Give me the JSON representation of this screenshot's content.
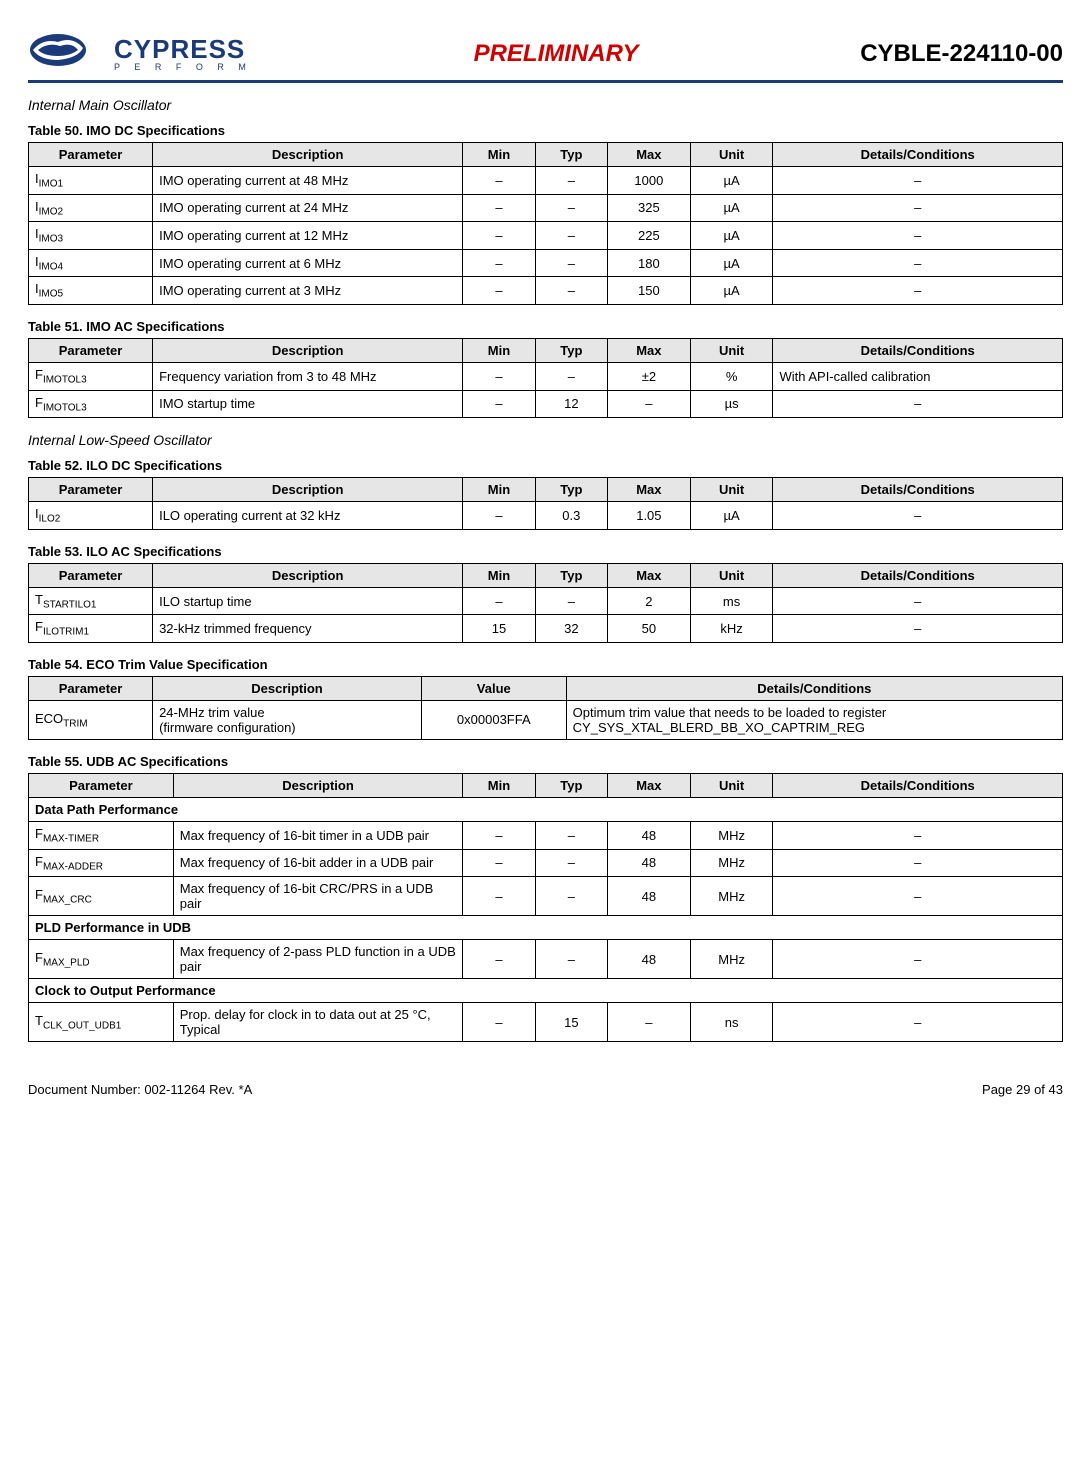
{
  "header": {
    "logo_main": "CYPRESS",
    "logo_sub": "P E R F O R M",
    "preliminary": "PRELIMINARY",
    "part_number": "CYBLE-224110-00"
  },
  "section1_heading": "Internal Main Oscillator",
  "table50": {
    "caption": "Table 50.  IMO DC Specifications",
    "headers": [
      "Parameter",
      "Description",
      "Min",
      "Typ",
      "Max",
      "Unit",
      "Details/Conditions"
    ],
    "rows": [
      {
        "param_base": "I",
        "param_sub": "IMO1",
        "desc": "IMO operating current at 48 MHz",
        "min": "–",
        "typ": "–",
        "max": "1000",
        "unit": "µA",
        "det": "–"
      },
      {
        "param_base": "I",
        "param_sub": "IMO2",
        "desc": "IMO operating current at 24 MHz",
        "min": "–",
        "typ": "–",
        "max": "325",
        "unit": "µA",
        "det": "–"
      },
      {
        "param_base": "I",
        "param_sub": "IMO3",
        "desc": "IMO operating current at 12 MHz",
        "min": "–",
        "typ": "–",
        "max": "225",
        "unit": "µA",
        "det": "–"
      },
      {
        "param_base": "I",
        "param_sub": "IMO4",
        "desc": "IMO operating current at 6 MHz",
        "min": "–",
        "typ": "–",
        "max": "180",
        "unit": "µA",
        "det": "–"
      },
      {
        "param_base": "I",
        "param_sub": "IMO5",
        "desc": "IMO operating current at 3 MHz",
        "min": "–",
        "typ": "–",
        "max": "150",
        "unit": "µA",
        "det": "–"
      }
    ]
  },
  "table51": {
    "caption": "Table 51.  IMO AC Specifications",
    "headers": [
      "Parameter",
      "Description",
      "Min",
      "Typ",
      "Max",
      "Unit",
      "Details/Conditions"
    ],
    "rows": [
      {
        "param_base": "F",
        "param_sub": "IMOTOL3",
        "desc": "Frequency variation from 3 to 48 MHz",
        "min": "–",
        "typ": "–",
        "max": "±2",
        "unit": "%",
        "det": "With API-called calibration"
      },
      {
        "param_base": "F",
        "param_sub": "IMOTOL3",
        "desc": "IMO startup time",
        "min": "–",
        "typ": "12",
        "max": "–",
        "unit": "µs",
        "det": "–"
      }
    ]
  },
  "section2_heading": "Internal Low-Speed Oscillator",
  "table52": {
    "caption": "Table 52.  ILO DC Specifications",
    "headers": [
      "Parameter",
      "Description",
      "Min",
      "Typ",
      "Max",
      "Unit",
      "Details/Conditions"
    ],
    "rows": [
      {
        "param_base": "I",
        "param_sub": "ILO2",
        "desc": "ILO operating current at 32 kHz",
        "min": "–",
        "typ": "0.3",
        "max": "1.05",
        "unit": "µA",
        "det": "–"
      }
    ]
  },
  "table53": {
    "caption": "Table 53.  ILO AC Specifications",
    "headers": [
      "Parameter",
      "Description",
      "Min",
      "Typ",
      "Max",
      "Unit",
      "Details/Conditions"
    ],
    "rows": [
      {
        "param_base": "T",
        "param_sub": "STARTILO1",
        "desc": "ILO startup time",
        "min": "–",
        "typ": "–",
        "max": "2",
        "unit": "ms",
        "det": "–"
      },
      {
        "param_base": "F",
        "param_sub": "ILOTRIM1",
        "desc": "32-kHz trimmed frequency",
        "min": "15",
        "typ": "32",
        "max": "50",
        "unit": "kHz",
        "det": "–"
      }
    ]
  },
  "table54": {
    "caption": "Table 54.  ECO Trim Value Specification",
    "headers": [
      "Parameter",
      "Description",
      "Value",
      "Details/Conditions"
    ],
    "rows": [
      {
        "param_base": "ECO",
        "param_sub": "TRIM",
        "desc": "24-MHz trim value\n(firmware configuration)",
        "value": "0x00003FFA",
        "det": "Optimum trim value that needs to be loaded to register CY_SYS_XTAL_BLERD_BB_XO_CAPTRIM_REG"
      }
    ]
  },
  "table55": {
    "caption": "Table 55.  UDB AC Specifications",
    "headers": [
      "Parameter",
      "Description",
      "Min",
      "Typ",
      "Max",
      "Unit",
      "Details/Conditions"
    ],
    "sections": [
      {
        "title": "Data Path Performance",
        "rows": [
          {
            "param_base": "F",
            "param_sub": "MAX-TIMER",
            "desc": "Max frequency of 16-bit timer in a UDB pair",
            "min": "–",
            "typ": "–",
            "max": "48",
            "unit": "MHz",
            "det": "–"
          },
          {
            "param_base": "F",
            "param_sub": "MAX-ADDER",
            "desc": "Max frequency of 16-bit adder in a UDB pair",
            "min": "–",
            "typ": "–",
            "max": "48",
            "unit": "MHz",
            "det": "–"
          },
          {
            "param_base": "F",
            "param_sub": "MAX_CRC",
            "desc": "Max frequency of 16-bit CRC/PRS in a UDB pair",
            "min": "–",
            "typ": "–",
            "max": "48",
            "unit": "MHz",
            "det": "–"
          }
        ]
      },
      {
        "title": "PLD Performance in UDB",
        "rows": [
          {
            "param_base": "F",
            "param_sub": "MAX_PLD",
            "desc": "Max frequency of 2-pass PLD function in a UDB pair",
            "min": "–",
            "typ": "–",
            "max": "48",
            "unit": "MHz",
            "det": "–"
          }
        ]
      },
      {
        "title": "Clock to Output Performance",
        "rows": [
          {
            "param_base": "T",
            "param_sub": "CLK_OUT_UDB1",
            "desc": "Prop. delay for clock in to data out at 25 °C, Typical",
            "min": "–",
            "typ": "15",
            "max": "–",
            "unit": "ns",
            "det": "–"
          }
        ]
      }
    ]
  },
  "footer": {
    "doc_number": "Document Number: 002-11264 Rev. *A",
    "page": "Page 29 of 43"
  },
  "style": {
    "header_border_color": "#1a3a7a",
    "header_bg": "#e6e6e6",
    "preliminary_color": "#d00000"
  }
}
